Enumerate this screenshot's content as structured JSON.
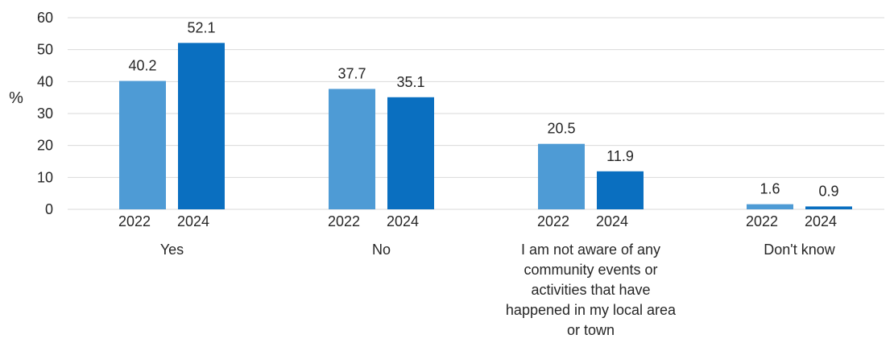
{
  "chart_data": {
    "type": "bar",
    "title": "",
    "xlabel": "",
    "ylabel": "%",
    "ylim": [
      0,
      60
    ],
    "yticks": [
      0,
      10,
      20,
      30,
      40,
      50,
      60
    ],
    "grid": true,
    "legend": "none",
    "categories": [
      "Yes",
      "No",
      "I am not aware of any community events or activities that have happened in my local area or town",
      "Don't know"
    ],
    "category_label_lines": [
      [
        "Yes"
      ],
      [
        "No"
      ],
      [
        "I am not aware of any",
        "community events or",
        "activities that have",
        "happened in my local area",
        "or town"
      ],
      [
        "Don't know"
      ]
    ],
    "series": [
      {
        "name": "2022",
        "color": "#4e9bd5",
        "values": [
          40.2,
          37.7,
          20.5,
          1.6
        ]
      },
      {
        "name": "2024",
        "color": "#0a6fc0",
        "values": [
          52.1,
          35.1,
          11.9,
          0.9
        ]
      }
    ]
  }
}
